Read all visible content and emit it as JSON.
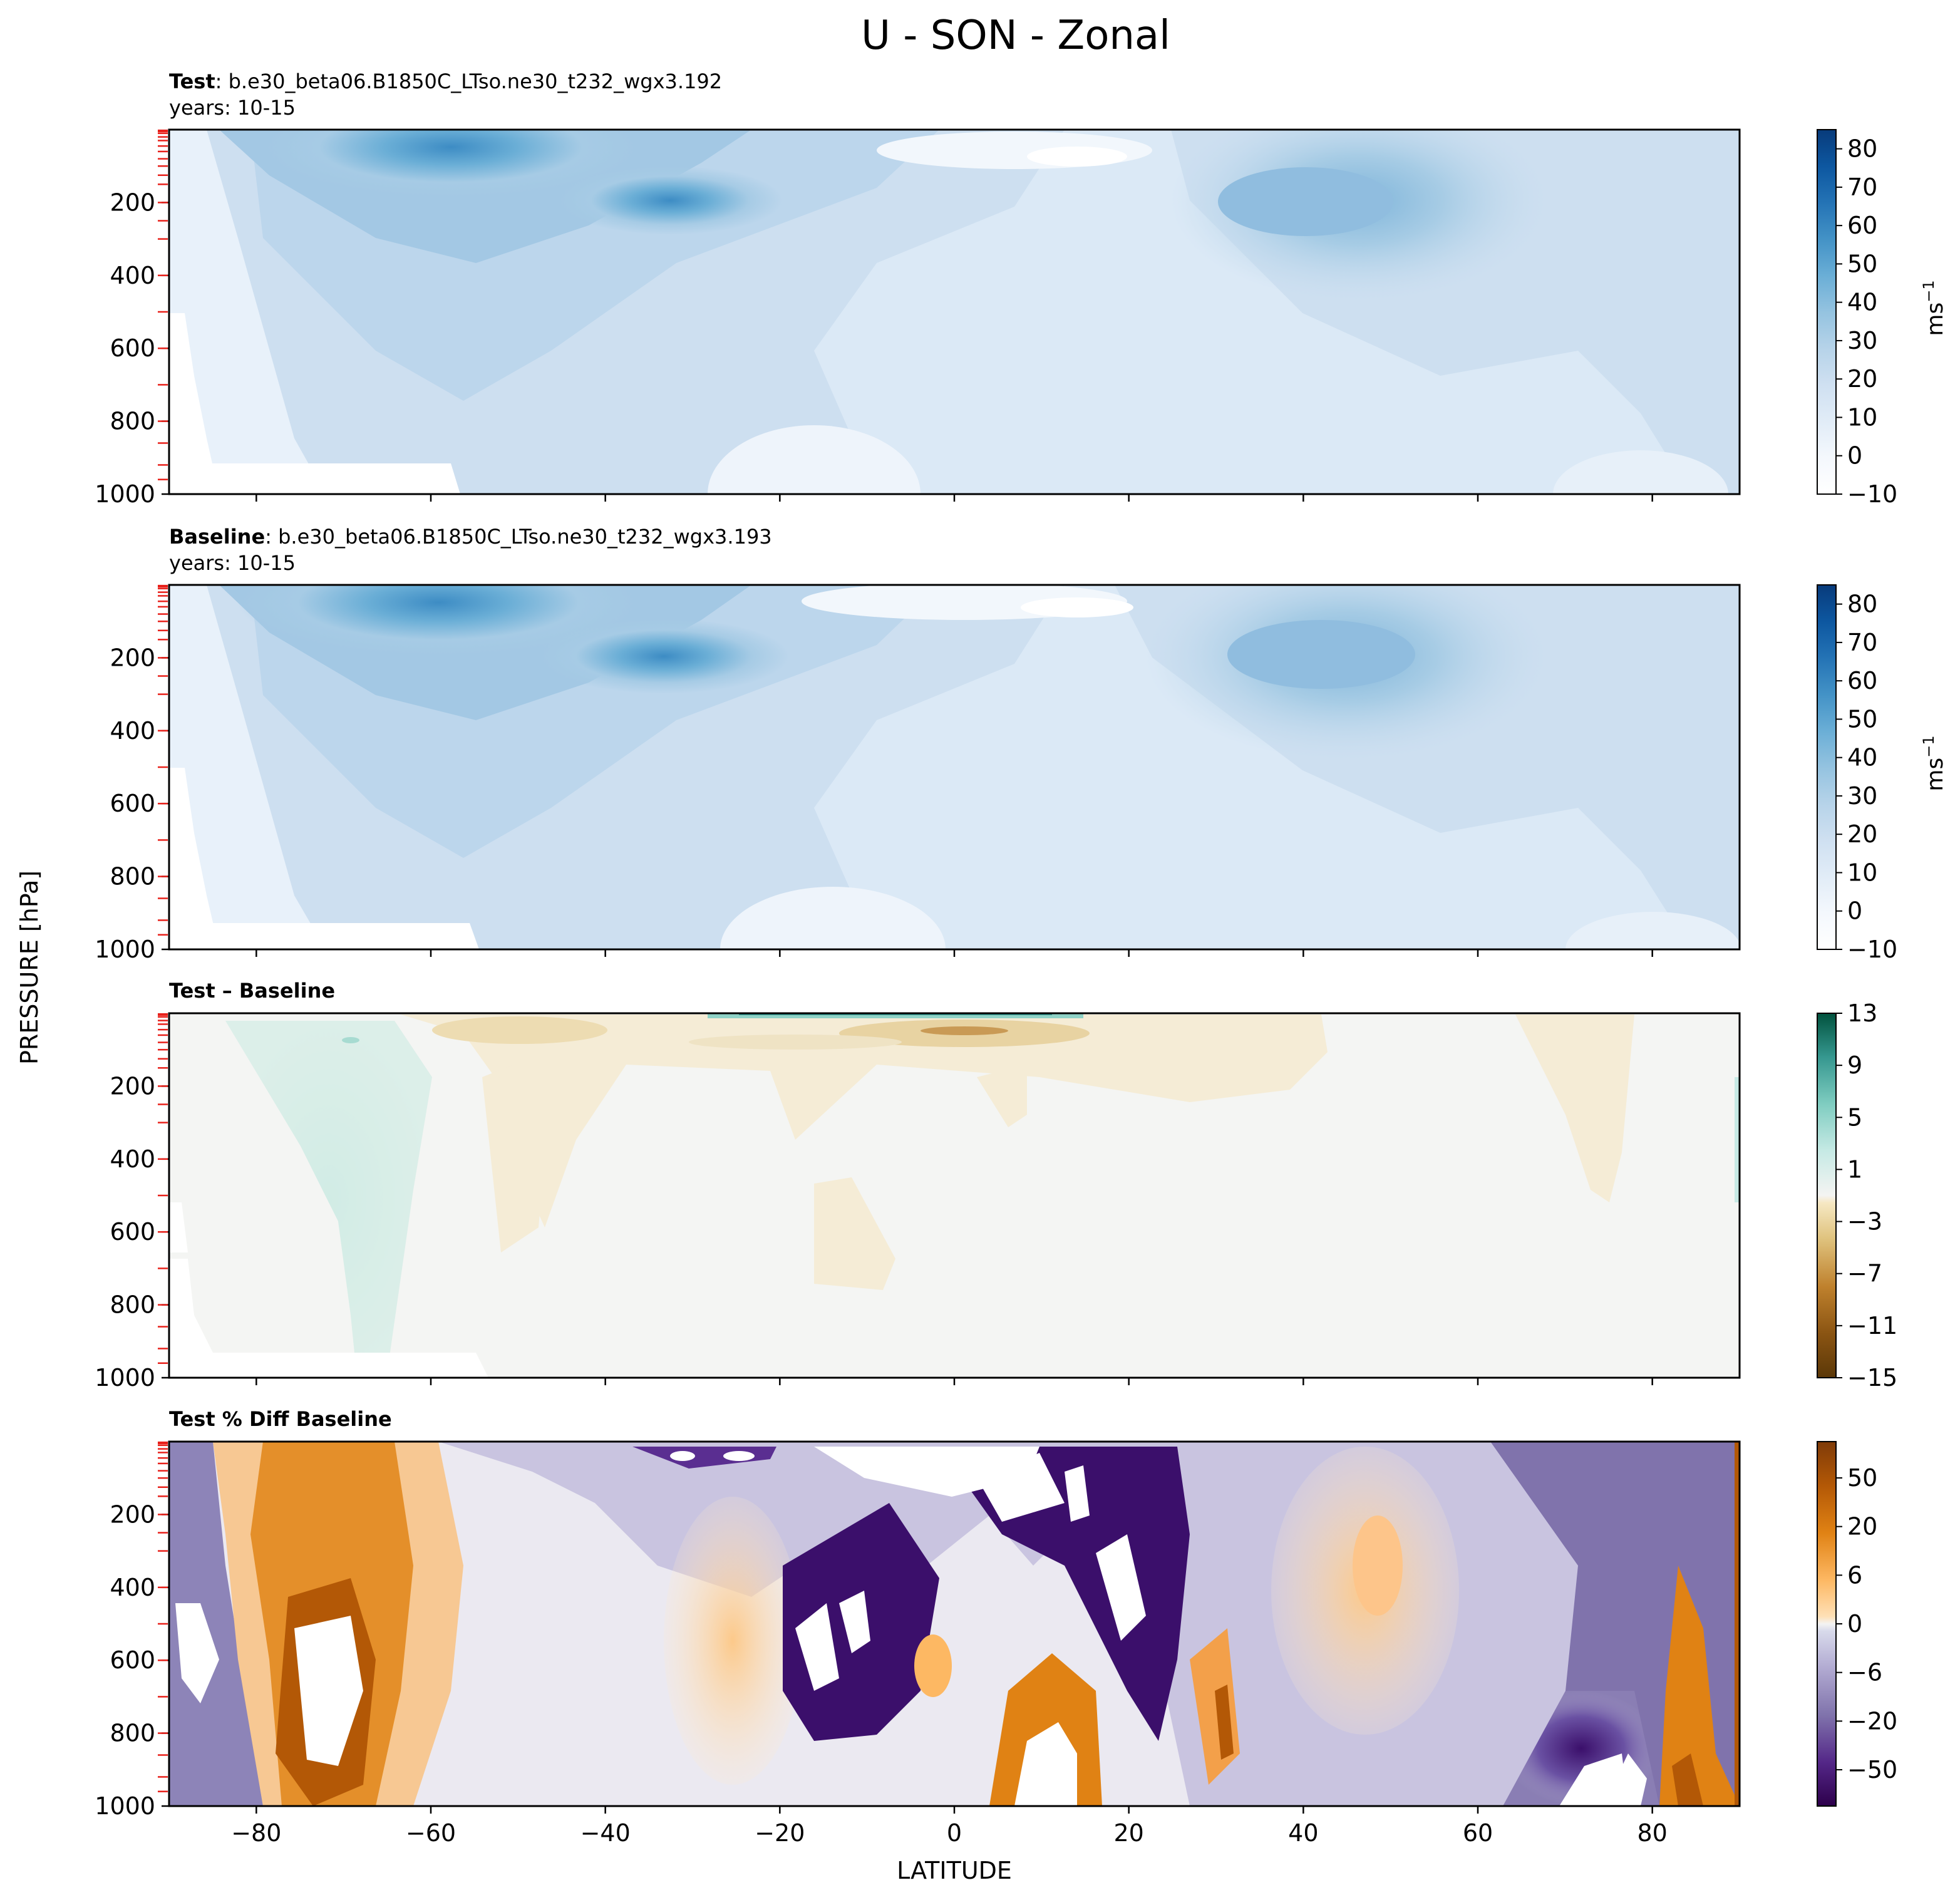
{
  "chart_data": {
    "type": "heatmap",
    "title": "U - SON - Zonal",
    "xlabel": "LATITUDE",
    "ylabel": "PRESSURE [hPa]",
    "xlim": [
      -90,
      90
    ],
    "ylim": [
      1000,
      0
    ],
    "x_ticks": [
      "−80",
      "−60",
      "−40",
      "−20",
      "0",
      "20",
      "40",
      "60",
      "80"
    ],
    "y_ticks": [
      "200",
      "400",
      "600",
      "800",
      "1000"
    ],
    "panels": [
      {
        "id": "test",
        "heading_bold": "Test",
        "heading_text": ": b.e30_beta06.B1850C_LTso.ne30_t232_wgx3.192",
        "subheading": "years: 10-15",
        "colormap": "Blues",
        "colorbar_ticks": [
          "80",
          "70",
          "60",
          "50",
          "40",
          "30",
          "20",
          "10",
          "0",
          "−10"
        ],
        "colorbar_range": [
          -10,
          85
        ],
        "units_base": "ms",
        "units_sup": "−1",
        "features": [
          {
            "kind": "jet",
            "lat": -50,
            "p": 40,
            "value": 55
          },
          {
            "kind": "jet",
            "lat": -30,
            "p": 200,
            "value": 45
          },
          {
            "kind": "jet",
            "lat": 44,
            "p": 210,
            "value": 38
          },
          {
            "kind": "easterly",
            "lat": 5,
            "p": 80,
            "value": -5
          },
          {
            "kind": "surface",
            "lat": -70,
            "p": 950,
            "value": -10
          }
        ]
      },
      {
        "id": "baseline",
        "heading_bold": "Baseline",
        "heading_text": ": b.e30_beta06.B1850C_LTso.ne30_t232_wgx3.193",
        "subheading": "years: 10-15",
        "colormap": "Blues",
        "colorbar_ticks": [
          "80",
          "70",
          "60",
          "50",
          "40",
          "30",
          "20",
          "10",
          "0",
          "−10"
        ],
        "colorbar_range": [
          -10,
          85
        ],
        "units_base": "ms",
        "units_sup": "−1",
        "features": [
          {
            "kind": "jet",
            "lat": -52,
            "p": 40,
            "value": 58
          },
          {
            "kind": "jet",
            "lat": -30,
            "p": 200,
            "value": 46
          },
          {
            "kind": "jet",
            "lat": 45,
            "p": 200,
            "value": 40
          },
          {
            "kind": "easterly",
            "lat": 5,
            "p": 80,
            "value": -4
          },
          {
            "kind": "surface",
            "lat": -70,
            "p": 950,
            "value": -10
          }
        ]
      },
      {
        "id": "diff",
        "heading_bold": "Test – Baseline",
        "heading_text": "",
        "subheading": "",
        "colormap": "BrBG",
        "colorbar_ticks": [
          "13",
          "9",
          "5",
          "1",
          "−3",
          "−7",
          "−11",
          "−15"
        ],
        "colorbar_range": [
          -15,
          13
        ],
        "units_base": "",
        "units_sup": "",
        "features": [
          {
            "kind": "positive",
            "lat": -70,
            "p": 400,
            "value": 2
          },
          {
            "kind": "negative",
            "lat": -45,
            "p": 300,
            "value": -2
          },
          {
            "kind": "negative",
            "lat": -3,
            "p": 50,
            "value": -6
          },
          {
            "kind": "negative",
            "lat": -15,
            "p": 600,
            "value": -2
          },
          {
            "kind": "negative",
            "lat": 75,
            "p": 200,
            "value": -2
          }
        ]
      },
      {
        "id": "pctdiff",
        "heading_bold": "Test % Diff Baseline",
        "heading_text": "",
        "subheading": "",
        "colormap": "PuOr",
        "colorbar_ticks": [
          "50",
          "20",
          "6",
          "0",
          "−6",
          "−20",
          "−50"
        ],
        "colorbar_range": [
          -80,
          80
        ],
        "units_base": "",
        "units_sup": "",
        "features": [
          {
            "kind": "positive",
            "lat": -68,
            "p": 400,
            "value": 20
          },
          {
            "kind": "negative",
            "lat": 10,
            "p": 300,
            "value": -50
          },
          {
            "kind": "positive",
            "lat": 8,
            "p": 900,
            "value": 50
          },
          {
            "kind": "negative",
            "lat": 75,
            "p": 500,
            "value": -20
          },
          {
            "kind": "positive",
            "lat": 86,
            "p": 700,
            "value": 50
          }
        ]
      }
    ]
  }
}
